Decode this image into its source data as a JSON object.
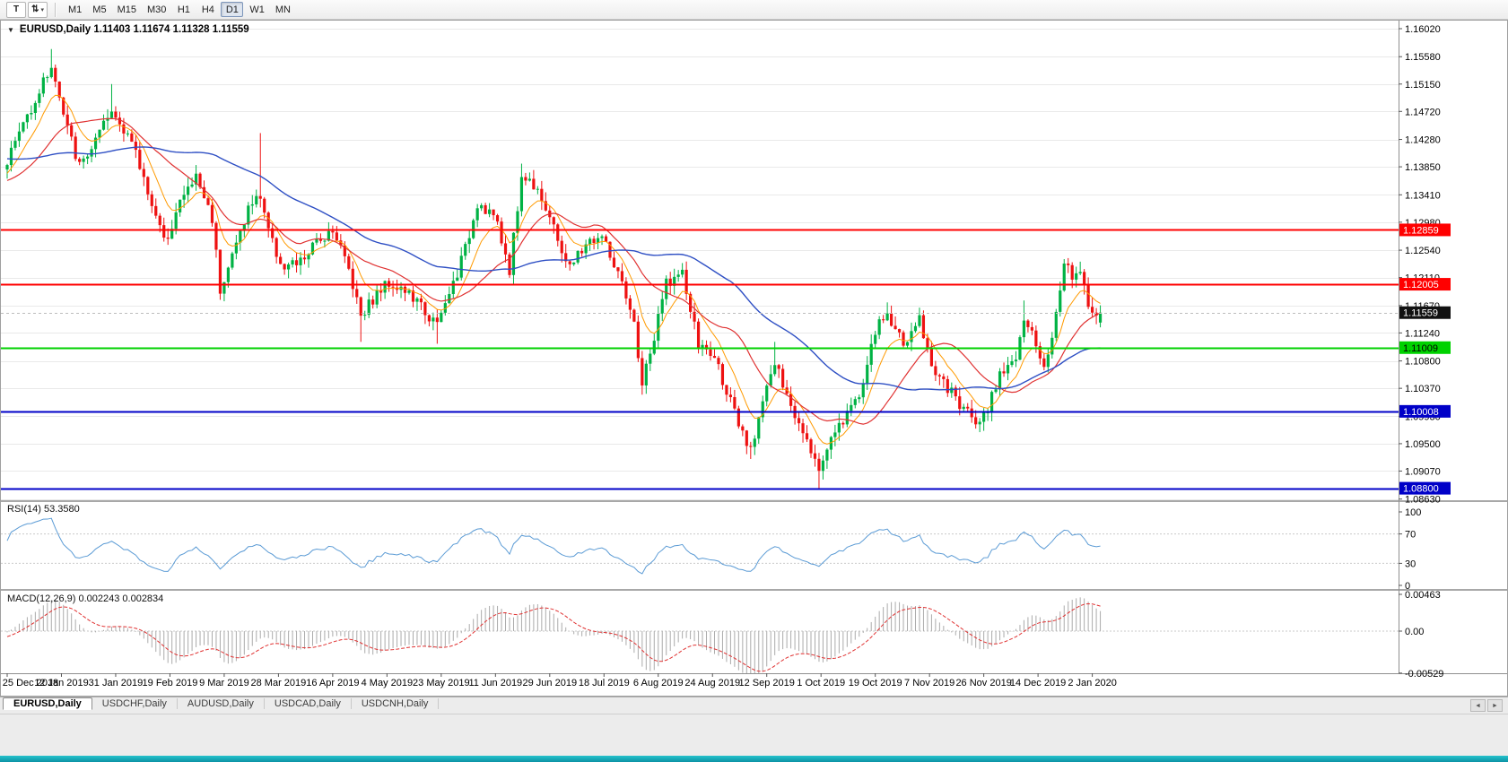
{
  "toolbar": {
    "chart_tool": {
      "label": "T"
    },
    "arrange_tool": {
      "glyph": "⇅",
      "caret": "▾"
    },
    "timeframes": [
      {
        "label": "M1",
        "active": false
      },
      {
        "label": "M5",
        "active": false
      },
      {
        "label": "M15",
        "active": false
      },
      {
        "label": "M30",
        "active": false
      },
      {
        "label": "H1",
        "active": false
      },
      {
        "label": "H4",
        "active": false
      },
      {
        "label": "D1",
        "active": true
      },
      {
        "label": "W1",
        "active": false
      },
      {
        "label": "MN",
        "active": false
      }
    ]
  },
  "chart_header": {
    "collapse_glyph": "▼",
    "text": "EURUSD,Daily  1.11403 1.11674 1.11328 1.11559"
  },
  "rsi": {
    "header": "RSI(14) 53.3580",
    "scale_labels": [
      "100",
      "70",
      "30",
      "0"
    ]
  },
  "macd": {
    "header": "MACD(12,26,9) 0.002243 0.002834",
    "scale_labels": [
      "0.00463",
      "0.00",
      "-0.00529"
    ]
  },
  "tab_bar": {
    "tabs": [
      {
        "label": "EURUSD,Daily",
        "active": true
      },
      {
        "label": "USDCHF,Daily",
        "active": false
      },
      {
        "label": "AUDUSD,Daily",
        "active": false
      },
      {
        "label": "USDCAD,Daily",
        "active": false
      },
      {
        "label": "USDCNH,Daily",
        "active": false
      }
    ],
    "left_arrow": "◄",
    "right_arrow": "►"
  },
  "chart_data": {
    "type": "candlestick",
    "symbol": "EURUSD",
    "timeframe": "Daily",
    "ohlc": {
      "open": 1.11403,
      "high": 1.11674,
      "low": 1.11328,
      "close": 1.11559
    },
    "price_axis_labels": [
      "1.16020",
      "1.15580",
      "1.15150",
      "1.14720",
      "1.14280",
      "1.13850",
      "1.13410",
      "1.12980",
      "1.12540",
      "1.12110",
      "1.11670",
      "1.11240",
      "1.10800",
      "1.10370",
      "1.09930",
      "1.09500",
      "1.09070",
      "1.08630"
    ],
    "date_axis_labels": [
      "25 Dec 2018",
      "12 Jan 2019",
      "31 Jan 2019",
      "19 Feb 2019",
      "9 Mar 2019",
      "28 Mar 2019",
      "16 Apr 2019",
      "4 May 2019",
      "23 May 2019",
      "11 Jun 2019",
      "29 Jun 2019",
      "18 Jul 2019",
      "6 Aug 2019",
      "24 Aug 2019",
      "12 Sep 2019",
      "1 Oct 2019",
      "19 Oct 2019",
      "7 Nov 2019",
      "26 Nov 2019",
      "14 Dec 2019",
      "2 Jan 2020"
    ],
    "y_axis": {
      "top": 1.1602,
      "bottom": 1.0863
    },
    "x_axis": {
      "bar_count": 273,
      "bars_per_label": 13.5
    },
    "candle_colors": {
      "up": "#00b244",
      "down": "#ee1111"
    },
    "hlines": [
      {
        "price": 1.12859,
        "label": "1.12859",
        "color": "#ff0000",
        "text_color": "#ffffff"
      },
      {
        "price": 1.12005,
        "label": "1.12005",
        "color": "#ff0000",
        "text_color": "#ffffff"
      },
      {
        "price": 1.11009,
        "label": "1.11009",
        "color": "#00d200",
        "text_color": "#000000"
      },
      {
        "price": 1.10008,
        "label": "1.10008",
        "color": "#0000c8",
        "text_color": "#ffffff"
      },
      {
        "price": 1.088,
        "label": "1.08800",
        "color": "#0000c8",
        "text_color": "#ffffff"
      }
    ],
    "current_price": {
      "value": 1.11559,
      "label": "1.11559",
      "bg": "#111111",
      "text_color": "#ffffff"
    },
    "moving_averages": [
      {
        "period": 9,
        "type": "ema",
        "color": "#ff9a00",
        "width": 1
      },
      {
        "period": 21,
        "type": "sma",
        "color": "#e03232",
        "width": 1.2
      },
      {
        "period": 55,
        "type": "sma",
        "color": "#2e4fc4",
        "width": 1.4
      }
    ],
    "indicators": {
      "rsi": {
        "period": 14,
        "value": 53.358,
        "levels": [
          70,
          30
        ],
        "color": "#5b9bd5"
      },
      "macd": {
        "fast": 12,
        "slow": 26,
        "signal": 9,
        "value": 0.002243,
        "signal_value": 0.002834,
        "histogram_color": "#ababab",
        "signal_color": "#e03232"
      }
    },
    "seed": 1337,
    "noise": {
      "close": 0.0021,
      "wick": 0.0015
    },
    "prehistory_waypoints": [
      [
        -60,
        1.142
      ],
      [
        -45,
        1.1455
      ],
      [
        -30,
        1.14
      ],
      [
        -20,
        1.1368
      ],
      [
        -12,
        1.1348
      ],
      [
        -6,
        1.1372
      ],
      [
        -1,
        1.1388
      ]
    ],
    "price_waypoints": [
      [
        0,
        1.1395
      ],
      [
        3,
        1.144
      ],
      [
        8,
        1.1505
      ],
      [
        11,
        1.1545
      ],
      [
        14,
        1.1465
      ],
      [
        18,
        1.1385
      ],
      [
        22,
        1.1425
      ],
      [
        26,
        1.147
      ],
      [
        30,
        1.144
      ],
      [
        36,
        1.133
      ],
      [
        39,
        1.1265
      ],
      [
        43,
        1.133
      ],
      [
        47,
        1.137
      ],
      [
        51,
        1.1305
      ],
      [
        53,
        1.1195
      ],
      [
        56,
        1.1245
      ],
      [
        60,
        1.132
      ],
      [
        63,
        1.134
      ],
      [
        66,
        1.1265
      ],
      [
        69,
        1.1225
      ],
      [
        73,
        1.1235
      ],
      [
        77,
        1.1265
      ],
      [
        81,
        1.129
      ],
      [
        85,
        1.1225
      ],
      [
        88,
        1.1155
      ],
      [
        92,
        1.1185
      ],
      [
        95,
        1.1205
      ],
      [
        99,
        1.119
      ],
      [
        103,
        1.1165
      ],
      [
        107,
        1.1135
      ],
      [
        110,
        1.1185
      ],
      [
        114,
        1.1255
      ],
      [
        117,
        1.133
      ],
      [
        121,
        1.131
      ],
      [
        125,
        1.1225
      ],
      [
        128,
        1.137
      ],
      [
        132,
        1.1355
      ],
      [
        136,
        1.1285
      ],
      [
        140,
        1.1225
      ],
      [
        144,
        1.1265
      ],
      [
        148,
        1.1275
      ],
      [
        152,
        1.1215
      ],
      [
        156,
        1.1135
      ],
      [
        158,
        1.1045
      ],
      [
        161,
        1.1115
      ],
      [
        164,
        1.1205
      ],
      [
        168,
        1.1215
      ],
      [
        172,
        1.1105
      ],
      [
        176,
        1.1085
      ],
      [
        179,
        1.1035
      ],
      [
        182,
        1.0975
      ],
      [
        185,
        1.0935
      ],
      [
        188,
        1.1025
      ],
      [
        191,
        1.1075
      ],
      [
        195,
        1.1005
      ],
      [
        199,
        1.0965
      ],
      [
        202,
        1.0905
      ],
      [
        205,
        1.0965
      ],
      [
        209,
        1.0995
      ],
      [
        213,
        1.1045
      ],
      [
        216,
        1.1125
      ],
      [
        219,
        1.1155
      ],
      [
        223,
        1.1105
      ],
      [
        227,
        1.1145
      ],
      [
        230,
        1.1075
      ],
      [
        234,
        1.1035
      ],
      [
        238,
        1.1005
      ],
      [
        241,
        1.0988
      ],
      [
        244,
        1.1005
      ],
      [
        247,
        1.1065
      ],
      [
        251,
        1.1085
      ],
      [
        253,
        1.1135
      ],
      [
        255,
        1.112
      ],
      [
        258,
        1.107
      ],
      [
        261,
        1.115
      ],
      [
        263,
        1.1235
      ],
      [
        265,
        1.1212
      ],
      [
        267,
        1.123
      ],
      [
        269,
        1.1175
      ],
      [
        271,
        1.1141
      ],
      [
        272,
        1.11559
      ]
    ],
    "spikes": [
      [
        11,
        "high",
        1.157
      ],
      [
        26,
        "high",
        1.1515
      ],
      [
        53,
        "low",
        1.1176
      ],
      [
        63,
        "high",
        1.1438
      ],
      [
        88,
        "low",
        1.111
      ],
      [
        107,
        "low",
        1.1107
      ],
      [
        128,
        "high",
        1.139
      ],
      [
        158,
        "low",
        1.1027
      ],
      [
        185,
        "low",
        1.0926
      ],
      [
        191,
        "high",
        1.111
      ],
      [
        202,
        "low",
        1.0879
      ],
      [
        219,
        "high",
        1.1172
      ],
      [
        253,
        "high",
        1.1175
      ],
      [
        263,
        "high",
        1.124
      ],
      [
        267,
        "high",
        1.1236
      ]
    ]
  }
}
